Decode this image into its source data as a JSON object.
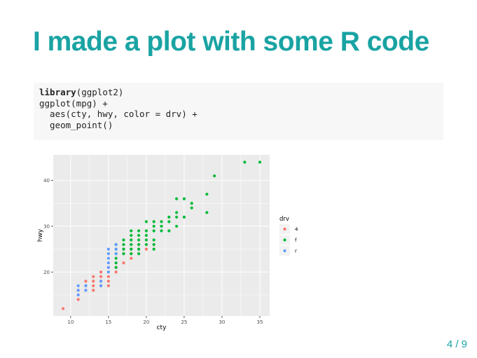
{
  "slide": {
    "title": "I made a plot with some R code",
    "number": "4 / 9"
  },
  "code": {
    "line1_keyword": "library",
    "line1_rest": "(ggplot2)",
    "line2": "ggplot(mpg) +",
    "line3": "  aes(cty, hwy, color = drv) +",
    "line4": "  geom_point()"
  },
  "colors": {
    "title": "#1aa3a3",
    "panel": "#ebebeb",
    "grid": "#ffffff",
    "series_4": "#F8766D",
    "series_f": "#00BA38",
    "series_r": "#619CFF"
  },
  "chart_data": {
    "type": "scatter",
    "xlabel": "cty",
    "ylabel": "hwy",
    "xlim": [
      7.7,
      36.3
    ],
    "ylim": [
      10.4,
      45.6
    ],
    "xticks": [
      10,
      15,
      20,
      25,
      30,
      35
    ],
    "yticks": [
      20,
      30,
      40
    ],
    "grid": true,
    "legend": {
      "title": "drv",
      "position": "right"
    },
    "series": [
      {
        "name": "4",
        "color": "#F8766D",
        "points": [
          [
            9,
            12
          ],
          [
            11,
            14
          ],
          [
            11,
            15
          ],
          [
            11,
            16
          ],
          [
            12,
            16
          ],
          [
            12,
            17
          ],
          [
            12,
            18
          ],
          [
            13,
            16
          ],
          [
            13,
            17
          ],
          [
            13,
            18
          ],
          [
            13,
            19
          ],
          [
            14,
            17
          ],
          [
            14,
            18
          ],
          [
            14,
            19
          ],
          [
            14,
            20
          ],
          [
            15,
            17
          ],
          [
            15,
            18
          ],
          [
            15,
            19
          ],
          [
            15,
            20
          ],
          [
            15,
            21
          ],
          [
            16,
            20
          ],
          [
            16,
            21
          ],
          [
            17,
            22
          ],
          [
            17,
            24
          ],
          [
            17,
            25
          ],
          [
            18,
            23
          ],
          [
            18,
            24
          ],
          [
            18,
            25
          ],
          [
            18,
            26
          ],
          [
            19,
            25
          ],
          [
            19,
            26
          ],
          [
            20,
            25
          ],
          [
            20,
            26
          ],
          [
            21,
            26
          ]
        ]
      },
      {
        "name": "f",
        "color": "#00BA38",
        "points": [
          [
            16,
            21
          ],
          [
            16,
            22
          ],
          [
            16,
            23
          ],
          [
            16,
            24
          ],
          [
            16,
            25
          ],
          [
            16,
            26
          ],
          [
            17,
            24
          ],
          [
            17,
            25
          ],
          [
            17,
            26
          ],
          [
            17,
            27
          ],
          [
            18,
            24
          ],
          [
            18,
            25
          ],
          [
            18,
            26
          ],
          [
            18,
            27
          ],
          [
            18,
            28
          ],
          [
            18,
            29
          ],
          [
            19,
            24
          ],
          [
            19,
            25
          ],
          [
            19,
            26
          ],
          [
            19,
            27
          ],
          [
            19,
            28
          ],
          [
            19,
            29
          ],
          [
            20,
            26
          ],
          [
            20,
            27
          ],
          [
            20,
            28
          ],
          [
            20,
            29
          ],
          [
            20,
            31
          ],
          [
            21,
            25
          ],
          [
            21,
            26
          ],
          [
            21,
            27
          ],
          [
            21,
            29
          ],
          [
            21,
            30
          ],
          [
            21,
            31
          ],
          [
            22,
            29
          ],
          [
            22,
            30
          ],
          [
            22,
            31
          ],
          [
            23,
            29
          ],
          [
            23,
            31
          ],
          [
            23,
            32
          ],
          [
            24,
            30
          ],
          [
            24,
            32
          ],
          [
            24,
            33
          ],
          [
            24,
            36
          ],
          [
            25,
            32
          ],
          [
            25,
            36
          ],
          [
            26,
            34
          ],
          [
            26,
            35
          ],
          [
            28,
            33
          ],
          [
            28,
            37
          ],
          [
            29,
            41
          ],
          [
            33,
            44
          ],
          [
            35,
            44
          ]
        ]
      },
      {
        "name": "r",
        "color": "#619CFF",
        "points": [
          [
            11,
            15
          ],
          [
            11,
            16
          ],
          [
            11,
            17
          ],
          [
            12,
            16
          ],
          [
            12,
            17
          ],
          [
            14,
            17
          ],
          [
            14,
            18
          ],
          [
            15,
            20
          ],
          [
            15,
            21
          ],
          [
            15,
            22
          ],
          [
            15,
            23
          ],
          [
            15,
            24
          ],
          [
            15,
            25
          ],
          [
            16,
            24
          ],
          [
            16,
            25
          ],
          [
            16,
            26
          ]
        ]
      }
    ]
  }
}
